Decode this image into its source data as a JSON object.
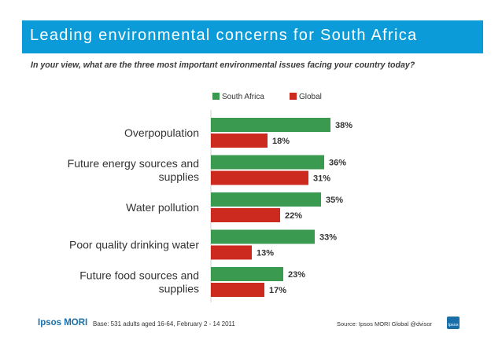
{
  "header": {
    "title": "Leading environmental concerns for South Africa",
    "question": "In your view, what are the three most important environmental issues facing your country today?"
  },
  "colors": {
    "title_bg": "#0a9bd8",
    "south_africa": "#3a9a50",
    "global": "#cc2a1f",
    "text": "#3a3a3a"
  },
  "chart_data": {
    "type": "bar",
    "orientation": "horizontal",
    "categories": [
      [
        "Overpopulation"
      ],
      [
        "Future energy sources and",
        "supplies"
      ],
      [
        "Water pollution"
      ],
      [
        "Poor quality drinking water"
      ],
      [
        "Future food sources and",
        "supplies"
      ]
    ],
    "series": [
      {
        "name": "South Africa",
        "values": [
          38,
          36,
          35,
          33,
          23
        ],
        "labels": [
          "38%",
          "36%",
          "35%",
          "33%",
          "23%"
        ]
      },
      {
        "name": "Global",
        "values": [
          18,
          31,
          22,
          13,
          17
        ],
        "labels": [
          "18%",
          "31%",
          "22%",
          "13%",
          "17%"
        ]
      }
    ],
    "xlim": [
      0,
      40
    ],
    "legend_position": "top",
    "unit": "%"
  },
  "footer": {
    "logo": "Ipsos MORI",
    "base": "Base: 531 adults aged 16-64, February 2 - 14 2011",
    "source": "Source: Ipsos MORI Global @dvisor",
    "logo_mark": "Ipsos"
  }
}
